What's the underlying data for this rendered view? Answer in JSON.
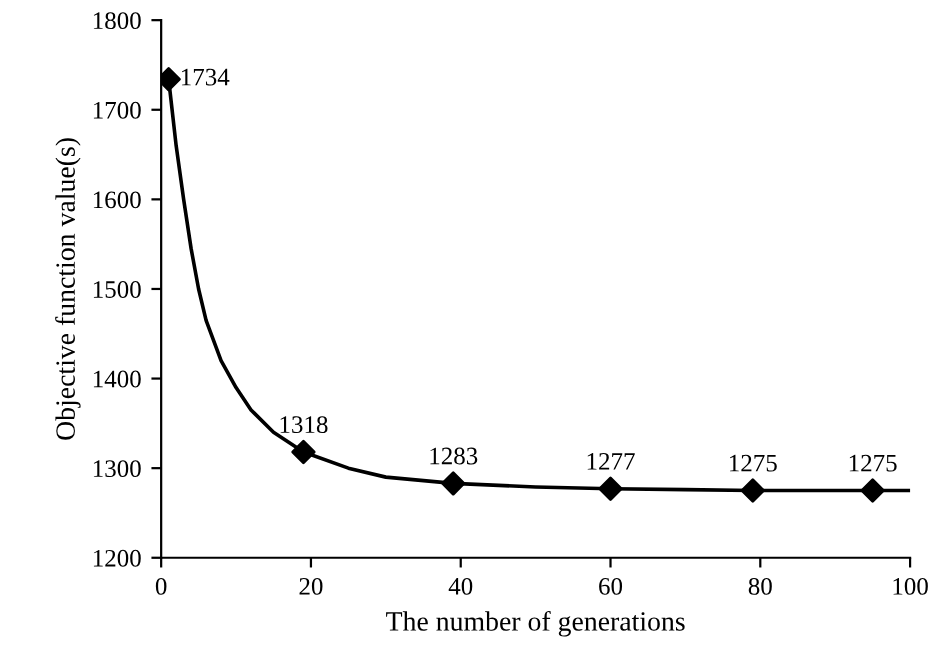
{
  "chart_data": {
    "type": "line",
    "xlabel": "The number of generations",
    "ylabel": "Objective function value(s)",
    "xlim": [
      0,
      100
    ],
    "xticks": [
      0,
      20,
      40,
      60,
      80,
      100
    ],
    "ylim": [
      1200,
      1800
    ],
    "yticks": [
      1200,
      1300,
      1400,
      1500,
      1600,
      1700,
      1800
    ],
    "grid": false,
    "legend": false,
    "series": [
      {
        "color": "#000000",
        "marker": "none",
        "line_style": "solid",
        "x": [
          1,
          2,
          3,
          4,
          5,
          6,
          8,
          10,
          12,
          15,
          19,
          25,
          30,
          39,
          50,
          60,
          70,
          79,
          90,
          95,
          100
        ],
        "values": [
          1734,
          1660,
          1600,
          1545,
          1500,
          1465,
          1420,
          1390,
          1365,
          1340,
          1318,
          1300,
          1290,
          1283,
          1279,
          1277,
          1276,
          1275,
          1275,
          1275,
          1275
        ]
      },
      {
        "type": "scatter",
        "color": "#000000",
        "marker": "diamond",
        "x": [
          1,
          19,
          39,
          60,
          79,
          95
        ],
        "values": [
          1734,
          1318,
          1283,
          1277,
          1275,
          1275
        ],
        "value_labels": [
          "1734",
          "1318",
          "1283",
          "1277",
          "1275",
          "1275"
        ]
      }
    ]
  }
}
